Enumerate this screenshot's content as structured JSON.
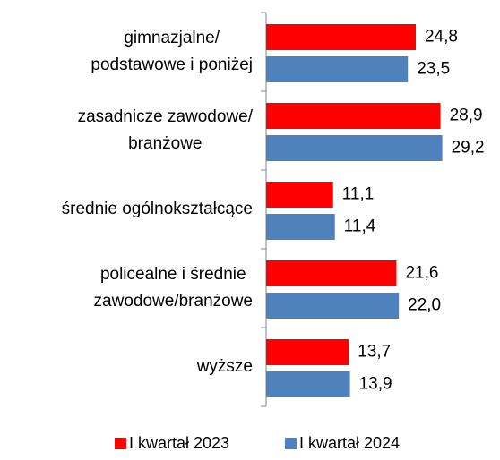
{
  "chart_data": {
    "type": "bar",
    "orientation": "horizontal",
    "categories": [
      "gimnazjalne/\npodstawowe i poniżej",
      "zasadnicze zawodowe/\nbranżowe",
      "średnie ogólnokształcące",
      "policealne i średnie\nzawodowe/branżowe",
      "wyższe"
    ],
    "series": [
      {
        "name": "I kwartał 2023",
        "color": "#ff0000",
        "values": [
          24.8,
          28.9,
          11.1,
          21.6,
          13.7
        ],
        "value_labels": [
          "24,8",
          "28,9",
          "11,1",
          "21,6",
          "13,7"
        ]
      },
      {
        "name": "I kwartał 2024",
        "color": "#4f81bd",
        "values": [
          23.5,
          29.2,
          11.4,
          22.0,
          13.9
        ],
        "value_labels": [
          "23,5",
          "29,2",
          "11,4",
          "22,0",
          "13,9"
        ]
      }
    ],
    "xlim": [
      0,
      30
    ],
    "legend": "bottom"
  }
}
